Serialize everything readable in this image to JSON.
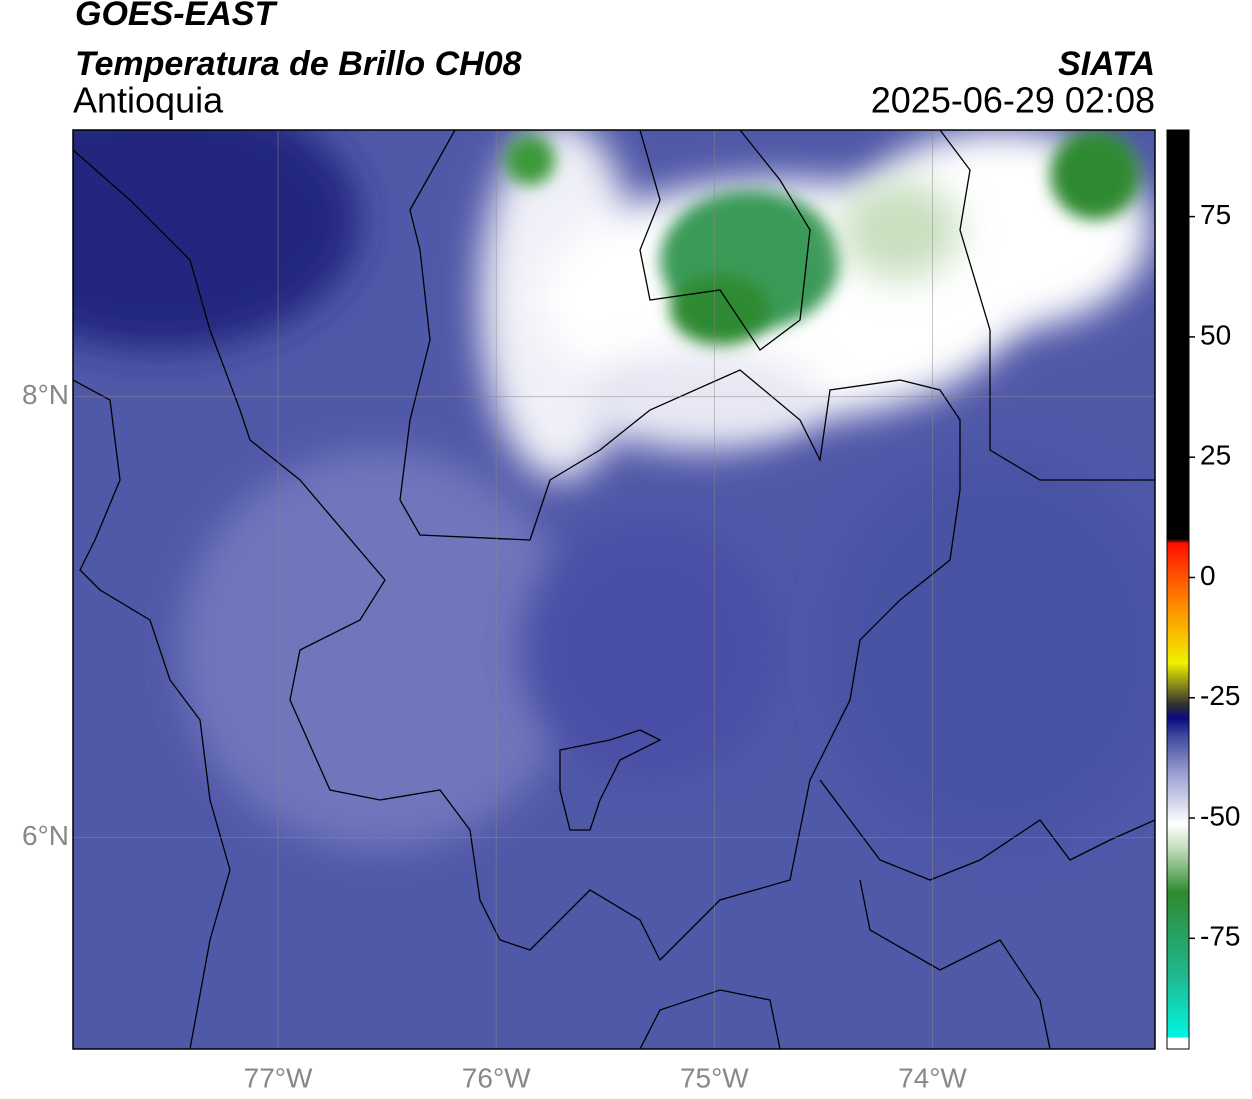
{
  "header": {
    "title": "GOES-EAST",
    "subtitle": "Temperatura de Brillo CH08",
    "region": "Antioquia",
    "source": "SIATA",
    "datetime": "2025-06-29 02:08"
  },
  "map": {
    "lonlim": [
      -77.94,
      -72.98
    ],
    "latlim": [
      5.04,
      9.21
    ],
    "lon_ticks": [
      {
        "value": -77,
        "label": "77°W"
      },
      {
        "value": -76,
        "label": "76°W"
      },
      {
        "value": -75,
        "label": "75°W"
      },
      {
        "value": -74,
        "label": "74°W"
      }
    ],
    "lat_ticks": [
      {
        "value": 8,
        "label": "8°N"
      },
      {
        "value": 6,
        "label": "6°N"
      }
    ]
  },
  "colorbar": {
    "lim": [
      -98,
      93
    ],
    "ticks": [
      75,
      50,
      25,
      0,
      -25,
      -50,
      -75
    ]
  }
}
